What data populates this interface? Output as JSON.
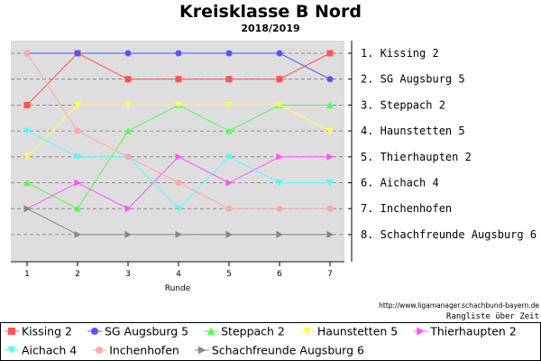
{
  "chart_data": {
    "type": "line",
    "title": "Kreisklasse B Nord",
    "subtitle": "2018/2019",
    "xlabel": "Runde",
    "x": [
      1,
      2,
      3,
      4,
      5,
      6,
      7
    ],
    "ylim": [
      1,
      8
    ],
    "y_inverted": true,
    "grid": true,
    "rank_labels": [
      "1. Kissing 2",
      "2. SG Augsburg 5",
      "3. Steppach 2",
      "4. Haunstetten 5",
      "5. Thierhaupten 2",
      "6. Aichach 4",
      "7. Inchenhofen",
      "8. Schachfreunde Augsburg 6"
    ],
    "series": [
      {
        "name": "Kissing 2",
        "color": "#ff5555",
        "marker": "square",
        "values": [
          3,
          1,
          2,
          2,
          2,
          2,
          1
        ]
      },
      {
        "name": "SG Augsburg 5",
        "color": "#5555ff",
        "marker": "circle",
        "values": [
          1,
          1,
          1,
          1,
          1,
          1,
          2
        ]
      },
      {
        "name": "Steppach 2",
        "color": "#55ff55",
        "marker": "triangle-up",
        "values": [
          6,
          7,
          4,
          3,
          4,
          3,
          3
        ]
      },
      {
        "name": "Haunstetten 5",
        "color": "#ffff55",
        "marker": "triangle-down",
        "values": [
          5,
          3,
          3,
          3,
          3,
          3,
          4
        ]
      },
      {
        "name": "Thierhaupten 2",
        "color": "#ff55ff",
        "marker": "triangle-right",
        "values": [
          7,
          6,
          7,
          5,
          6,
          5,
          5
        ]
      },
      {
        "name": "Aichach 4",
        "color": "#55ffff",
        "marker": "triangle-down",
        "values": [
          4,
          5,
          5,
          7,
          5,
          6,
          6
        ]
      },
      {
        "name": "Inchenhofen",
        "color": "#ffaaaa",
        "marker": "circle",
        "values": [
          1,
          4,
          5,
          6,
          7,
          7,
          7
        ]
      },
      {
        "name": "Schachfreunde Augsburg 6",
        "color": "#888888",
        "marker": "triangle-right",
        "values": [
          7,
          8,
          8,
          8,
          8,
          8,
          8
        ]
      }
    ],
    "legend": {
      "position": "bottom",
      "rows": [
        [
          0,
          1,
          2,
          3,
          4
        ],
        [
          5,
          6,
          7
        ]
      ]
    }
  },
  "footer": {
    "source": "http://www.ligamanager.schachbund-bayern.de",
    "caption": "Rangliste über Zeit"
  }
}
